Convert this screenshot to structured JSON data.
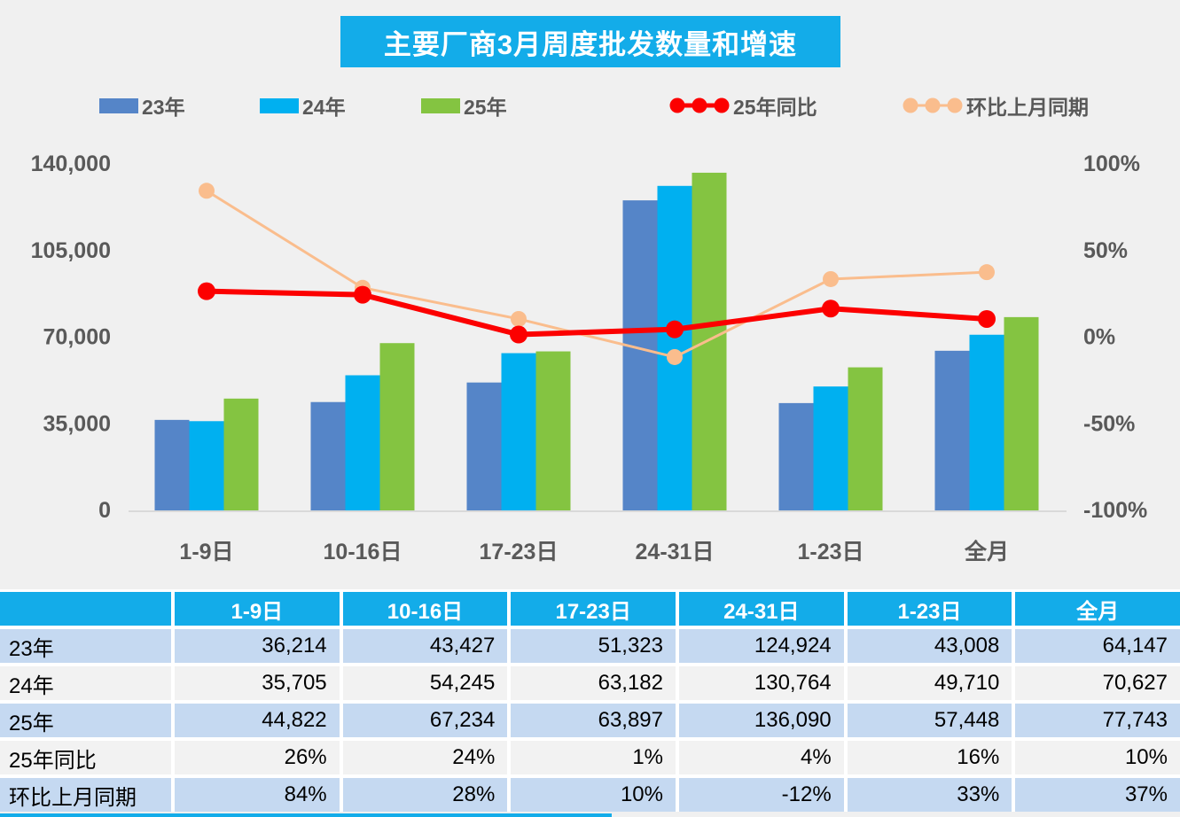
{
  "page": {
    "background": "#F0F0F0",
    "accent_cyan": "#13ACE9"
  },
  "title": {
    "text": "主要厂商3月周度批发数量和增速",
    "bg_color": "#13ACE9",
    "text_color": "#FFFFFF"
  },
  "chart_data": {
    "type": "bar",
    "subtype": "grouped bars with two percentage lines on secondary axis",
    "categories": [
      "1-9日",
      "10-16日",
      "17-23日",
      "24-31日",
      "1-23日",
      "全月"
    ],
    "bar_series": [
      {
        "name": "23年",
        "color": "#5585C8",
        "values": [
          36214,
          43427,
          51323,
          124924,
          43008,
          64147
        ]
      },
      {
        "name": "24年",
        "color": "#00B0F0",
        "values": [
          35705,
          54245,
          63182,
          130764,
          49710,
          70627
        ]
      },
      {
        "name": "25年",
        "color": "#84C441",
        "values": [
          44822,
          67234,
          63897,
          136090,
          57448,
          77743
        ]
      }
    ],
    "line_series": [
      {
        "name": "25年同比",
        "color": "#FC0000",
        "values_pct": [
          26,
          24,
          1,
          4,
          16,
          10
        ]
      },
      {
        "name": "环比上月同期",
        "color": "#FABD8D",
        "values_pct": [
          84,
          28,
          10,
          -12,
          33,
          37
        ]
      }
    ],
    "y_left": {
      "labels": [
        "140,000",
        "105,000",
        "70,000",
        "35,000",
        "0"
      ],
      "values": [
        140000,
        105000,
        70000,
        35000,
        0
      ],
      "min": 0,
      "max": 140000
    },
    "y_right": {
      "labels": [
        "100%",
        "50%",
        "0%",
        "-50%",
        "-100%"
      ],
      "values": [
        100,
        50,
        0,
        -50,
        -100
      ],
      "min": -100,
      "max": 100
    },
    "grid": false,
    "legend_position": "top",
    "axis_text_color": "#595959",
    "axis_line_color": "#D9D9D9"
  },
  "table": {
    "header": [
      "",
      "1-9日",
      "10-16日",
      "17-23日",
      "24-31日",
      "1-23日",
      "全月"
    ],
    "rows": [
      {
        "label": "23年",
        "values": [
          "36,214",
          "43,427",
          "51,323",
          "124,924",
          "43,008",
          "64,147"
        ]
      },
      {
        "label": "24年",
        "values": [
          "35,705",
          "54,245",
          "63,182",
          "130,764",
          "49,710",
          "70,627"
        ]
      },
      {
        "label": "25年",
        "values": [
          "44,822",
          "67,234",
          "63,897",
          "136,090",
          "57,448",
          "77,743"
        ]
      },
      {
        "label": "25年同比",
        "values": [
          "26%",
          "24%",
          "1%",
          "4%",
          "16%",
          "10%"
        ]
      },
      {
        "label": "环比上月同期",
        "values": [
          "84%",
          "28%",
          "10%",
          "-12%",
          "33%",
          "37%"
        ]
      }
    ],
    "colors": {
      "header_bg": "#13ACE9",
      "header_text": "#FFFFFF",
      "row_alt_blue": "#C5D9F1",
      "row_alt_gray": "#F2F2F2"
    }
  }
}
